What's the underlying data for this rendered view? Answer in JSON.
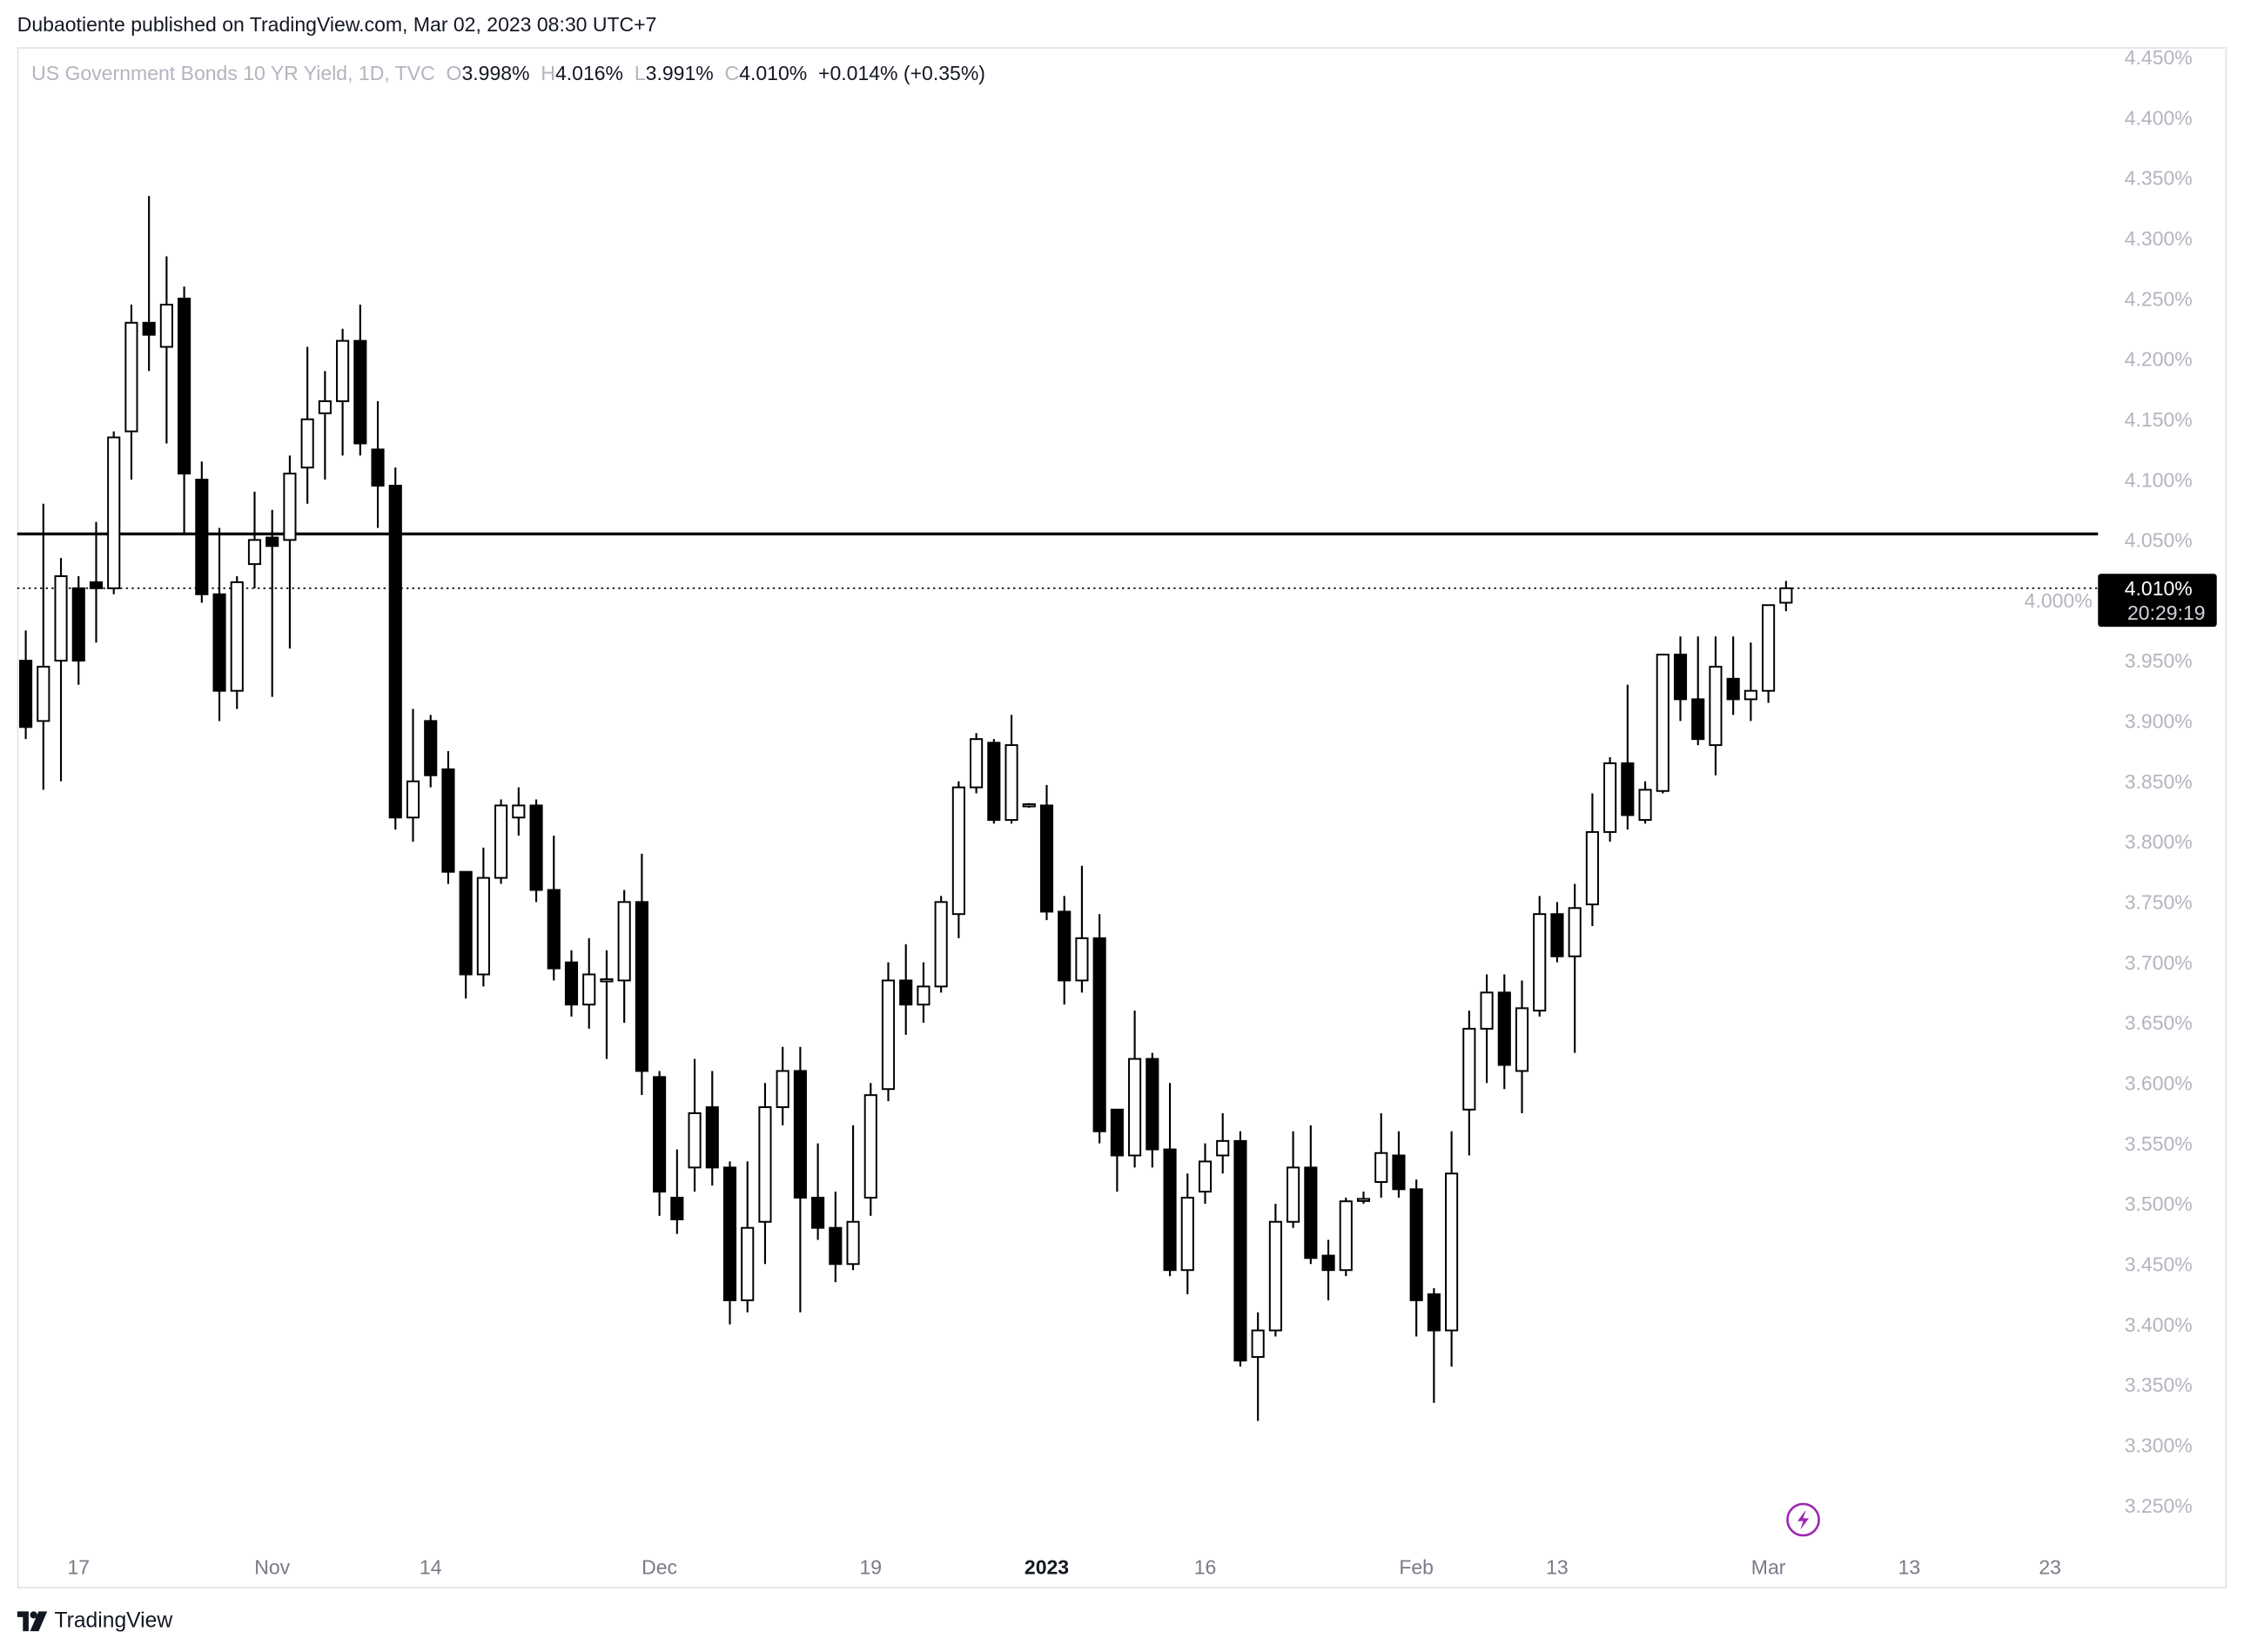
{
  "header": {
    "published": "Dubaotiente published on TradingView.com, Mar 02, 2023 08:30 UTC+7"
  },
  "legend": {
    "symbol": "US Government Bonds 10 YR Yield, 1D, TVC",
    "o_label": "O",
    "o": "3.998%",
    "h_label": "H",
    "h": "4.016%",
    "l_label": "L",
    "l": "3.991%",
    "c_label": "C",
    "c": "4.010%",
    "change": "+0.014% (+0.35%)"
  },
  "price_tag": {
    "price": "4.010%",
    "countdown": "20:29:19"
  },
  "footer": {
    "logo_text": "TradingView"
  },
  "icons": {
    "alert": "lightning-icon",
    "logo": "tradingview-logo-icon"
  },
  "colors": {
    "bull_fill": "#ffffff",
    "bear_fill": "#000000",
    "axis_text": "#b2b5be",
    "alert_icon": "#9c27b0"
  },
  "chart_data": {
    "type": "candlestick",
    "title": "US Government Bonds 10 YR Yield, 1D, TVC",
    "ylim": [
      3.25,
      4.45
    ],
    "y_ticks": [
      "4.450%",
      "4.400%",
      "4.350%",
      "4.300%",
      "4.250%",
      "4.200%",
      "4.150%",
      "4.100%",
      "4.050%",
      "4.000%",
      "3.950%",
      "3.900%",
      "3.850%",
      "3.800%",
      "3.750%",
      "3.700%",
      "3.650%",
      "3.600%",
      "3.550%",
      "3.500%",
      "3.450%",
      "3.400%",
      "3.350%",
      "3.300%",
      "3.250%"
    ],
    "x_ticks": [
      {
        "label": "17",
        "date": "2022-10-17"
      },
      {
        "label": "Nov",
        "date": "2022-11-01"
      },
      {
        "label": "14",
        "date": "2022-11-14"
      },
      {
        "label": "Dec",
        "date": "2022-12-01"
      },
      {
        "label": "19",
        "date": "2022-12-19"
      },
      {
        "label": "2023",
        "date": "2023-01-03",
        "bold": true
      },
      {
        "label": "16",
        "date": "2023-01-16"
      },
      {
        "label": "Feb",
        "date": "2023-02-01"
      },
      {
        "label": "13",
        "date": "2023-02-13"
      },
      {
        "label": "Mar",
        "date": "2023-03-01"
      },
      {
        "label": "13",
        "date": "2023-03-13"
      },
      {
        "label": "23",
        "date": "2023-03-23"
      }
    ],
    "horizontal_line": 4.055,
    "last_price": 4.01,
    "grid": false,
    "candles_fields": [
      "date",
      "open",
      "high",
      "low",
      "close"
    ],
    "candles": [
      [
        "2022-10-12",
        3.95,
        3.975,
        3.885,
        3.895
      ],
      [
        "2022-10-13",
        3.9,
        4.08,
        3.843,
        3.945
      ],
      [
        "2022-10-14",
        3.95,
        4.035,
        3.85,
        4.02
      ],
      [
        "2022-10-17",
        4.01,
        4.02,
        3.93,
        3.95
      ],
      [
        "2022-10-18",
        4.015,
        4.065,
        3.965,
        4.01
      ],
      [
        "2022-10-19",
        4.01,
        4.14,
        4.005,
        4.135
      ],
      [
        "2022-10-20",
        4.14,
        4.245,
        4.1,
        4.23
      ],
      [
        "2022-10-21",
        4.23,
        4.335,
        4.19,
        4.22
      ],
      [
        "2022-10-24",
        4.21,
        4.285,
        4.13,
        4.245
      ],
      [
        "2022-10-25",
        4.25,
        4.26,
        4.055,
        4.105
      ],
      [
        "2022-10-26",
        4.1,
        4.115,
        3.998,
        4.005
      ],
      [
        "2022-10-27",
        4.005,
        4.06,
        3.9,
        3.925
      ],
      [
        "2022-10-28",
        3.925,
        4.02,
        3.91,
        4.015
      ],
      [
        "2022-10-31",
        4.03,
        4.09,
        4.01,
        4.05
      ],
      [
        "2022-11-01",
        4.052,
        4.075,
        3.92,
        4.045
      ],
      [
        "2022-11-02",
        4.05,
        4.12,
        3.96,
        4.105
      ],
      [
        "2022-11-03",
        4.11,
        4.21,
        4.08,
        4.15
      ],
      [
        "2022-11-04",
        4.155,
        4.19,
        4.1,
        4.165
      ],
      [
        "2022-11-07",
        4.165,
        4.225,
        4.12,
        4.215
      ],
      [
        "2022-11-08",
        4.215,
        4.245,
        4.12,
        4.13
      ],
      [
        "2022-11-09",
        4.125,
        4.165,
        4.06,
        4.095
      ],
      [
        "2022-11-10",
        4.095,
        4.11,
        3.81,
        3.82
      ],
      [
        "2022-11-11",
        3.82,
        3.91,
        3.8,
        3.85
      ],
      [
        "2022-11-14",
        3.9,
        3.905,
        3.845,
        3.855
      ],
      [
        "2022-11-15",
        3.86,
        3.875,
        3.765,
        3.775
      ],
      [
        "2022-11-16",
        3.775,
        3.775,
        3.67,
        3.69
      ],
      [
        "2022-11-17",
        3.69,
        3.795,
        3.68,
        3.77
      ],
      [
        "2022-11-18",
        3.77,
        3.835,
        3.765,
        3.83
      ],
      [
        "2022-11-21",
        3.82,
        3.845,
        3.805,
        3.83
      ],
      [
        "2022-11-22",
        3.83,
        3.835,
        3.75,
        3.76
      ],
      [
        "2022-11-23",
        3.76,
        3.805,
        3.685,
        3.695
      ],
      [
        "2022-11-24",
        3.7,
        3.71,
        3.655,
        3.665
      ],
      [
        "2022-11-25",
        3.665,
        3.72,
        3.645,
        3.69
      ],
      [
        "2022-11-28",
        3.685,
        3.71,
        3.62,
        3.686
      ],
      [
        "2022-11-29",
        3.685,
        3.76,
        3.65,
        3.75
      ],
      [
        "2022-11-30",
        3.75,
        3.79,
        3.59,
        3.61
      ],
      [
        "2022-12-01",
        3.605,
        3.61,
        3.49,
        3.51
      ],
      [
        "2022-12-02",
        3.505,
        3.545,
        3.475,
        3.487
      ],
      [
        "2022-12-05",
        3.53,
        3.62,
        3.51,
        3.575
      ],
      [
        "2022-12-06",
        3.58,
        3.61,
        3.515,
        3.53
      ],
      [
        "2022-12-07",
        3.53,
        3.535,
        3.4,
        3.42
      ],
      [
        "2022-12-08",
        3.42,
        3.535,
        3.41,
        3.48
      ],
      [
        "2022-12-09",
        3.485,
        3.6,
        3.45,
        3.58
      ],
      [
        "2022-12-12",
        3.58,
        3.63,
        3.565,
        3.61
      ],
      [
        "2022-12-13",
        3.61,
        3.63,
        3.41,
        3.505
      ],
      [
        "2022-12-14",
        3.505,
        3.55,
        3.47,
        3.48
      ],
      [
        "2022-12-15",
        3.48,
        3.51,
        3.435,
        3.45
      ],
      [
        "2022-12-16",
        3.45,
        3.565,
        3.445,
        3.485
      ],
      [
        "2022-12-19",
        3.505,
        3.6,
        3.49,
        3.59
      ],
      [
        "2022-12-20",
        3.595,
        3.7,
        3.585,
        3.685
      ],
      [
        "2022-12-21",
        3.685,
        3.715,
        3.64,
        3.665
      ],
      [
        "2022-12-22",
        3.665,
        3.7,
        3.65,
        3.68
      ],
      [
        "2022-12-23",
        3.68,
        3.755,
        3.675,
        3.75
      ],
      [
        "2022-12-26",
        3.74,
        3.85,
        3.72,
        3.845
      ],
      [
        "2022-12-27",
        3.845,
        3.89,
        3.84,
        3.885
      ],
      [
        "2022-12-28",
        3.882,
        3.885,
        3.815,
        3.818
      ],
      [
        "2022-12-29",
        3.818,
        3.905,
        3.815,
        3.88
      ],
      [
        "2022-12-30",
        3.83,
        3.832,
        3.828,
        3.831
      ],
      [
        "2023-01-03",
        3.83,
        3.847,
        3.735,
        3.742
      ],
      [
        "2023-01-04",
        3.742,
        3.755,
        3.665,
        3.685
      ],
      [
        "2023-01-05",
        3.685,
        3.78,
        3.675,
        3.72
      ],
      [
        "2023-01-06",
        3.72,
        3.74,
        3.55,
        3.56
      ],
      [
        "2023-01-09",
        3.578,
        3.578,
        3.51,
        3.54
      ],
      [
        "2023-01-10",
        3.54,
        3.66,
        3.53,
        3.62
      ],
      [
        "2023-01-11",
        3.62,
        3.625,
        3.53,
        3.545
      ],
      [
        "2023-01-12",
        3.545,
        3.6,
        3.44,
        3.445
      ],
      [
        "2023-01-13",
        3.445,
        3.525,
        3.425,
        3.505
      ],
      [
        "2023-01-16",
        3.51,
        3.55,
        3.5,
        3.535
      ],
      [
        "2023-01-17",
        3.54,
        3.575,
        3.525,
        3.552
      ],
      [
        "2023-01-18",
        3.552,
        3.56,
        3.365,
        3.37
      ],
      [
        "2023-01-19",
        3.373,
        3.41,
        3.32,
        3.395
      ],
      [
        "2023-01-20",
        3.395,
        3.5,
        3.39,
        3.485
      ],
      [
        "2023-01-23",
        3.485,
        3.56,
        3.48,
        3.53
      ],
      [
        "2023-01-24",
        3.53,
        3.565,
        3.45,
        3.455
      ],
      [
        "2023-01-25",
        3.457,
        3.47,
        3.42,
        3.445
      ],
      [
        "2023-01-26",
        3.445,
        3.505,
        3.44,
        3.502
      ],
      [
        "2023-01-27",
        3.503,
        3.51,
        3.5,
        3.504
      ],
      [
        "2023-01-30",
        3.518,
        3.575,
        3.505,
        3.542
      ],
      [
        "2023-01-31",
        3.54,
        3.56,
        3.505,
        3.512
      ],
      [
        "2023-02-01",
        3.512,
        3.52,
        3.39,
        3.42
      ],
      [
        "2023-02-02",
        3.425,
        3.43,
        3.335,
        3.395
      ],
      [
        "2023-02-03",
        3.395,
        3.56,
        3.365,
        3.525
      ],
      [
        "2023-02-06",
        3.578,
        3.66,
        3.54,
        3.645
      ],
      [
        "2023-02-07",
        3.645,
        3.69,
        3.6,
        3.675
      ],
      [
        "2023-02-08",
        3.675,
        3.69,
        3.595,
        3.615
      ],
      [
        "2023-02-09",
        3.61,
        3.685,
        3.575,
        3.662
      ],
      [
        "2023-02-10",
        3.66,
        3.755,
        3.655,
        3.74
      ],
      [
        "2023-02-13",
        3.74,
        3.75,
        3.7,
        3.705
      ],
      [
        "2023-02-14",
        3.705,
        3.765,
        3.625,
        3.745
      ],
      [
        "2023-02-15",
        3.748,
        3.84,
        3.73,
        3.808
      ],
      [
        "2023-02-16",
        3.808,
        3.87,
        3.8,
        3.865
      ],
      [
        "2023-02-17",
        3.865,
        3.93,
        3.81,
        3.822
      ],
      [
        "2023-02-20",
        3.818,
        3.85,
        3.815,
        3.843
      ],
      [
        "2023-02-21",
        3.842,
        3.955,
        3.84,
        3.955
      ],
      [
        "2023-02-22",
        3.955,
        3.97,
        3.9,
        3.918
      ],
      [
        "2023-02-23",
        3.918,
        3.97,
        3.88,
        3.885
      ],
      [
        "2023-02-24",
        3.88,
        3.97,
        3.855,
        3.945
      ],
      [
        "2023-02-27",
        3.935,
        3.97,
        3.905,
        3.918
      ],
      [
        "2023-02-28",
        3.918,
        3.965,
        3.9,
        3.925
      ],
      [
        "2023-03-01",
        3.925,
        3.995,
        3.915,
        3.996
      ],
      [
        "2023-03-02",
        3.998,
        4.016,
        3.991,
        4.01
      ]
    ]
  }
}
